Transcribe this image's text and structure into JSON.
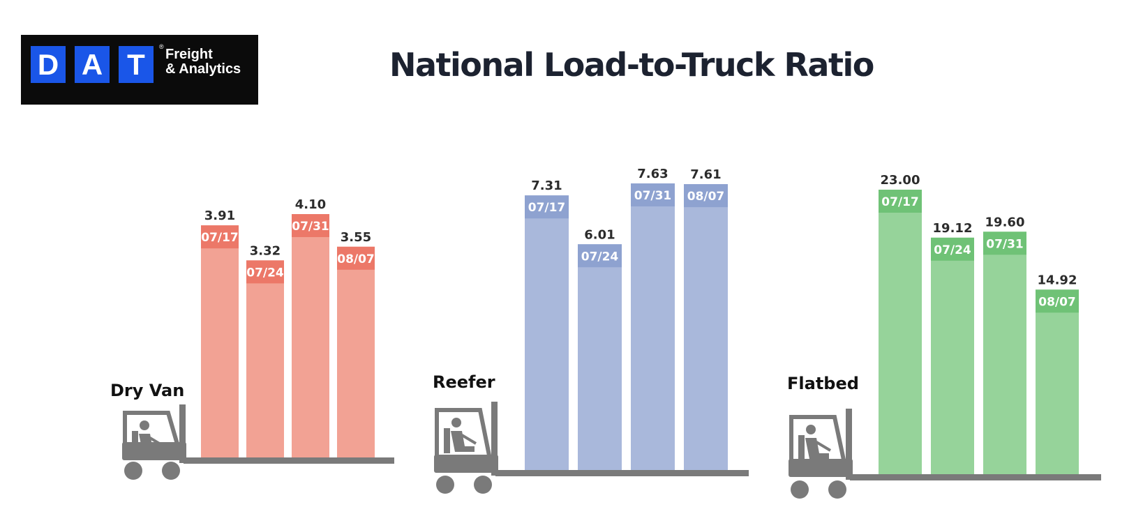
{
  "logo": {
    "letters": [
      "D",
      "A",
      "T"
    ],
    "registered": "®",
    "tagline_line1": "Freight",
    "tagline_line2": "& Analytics",
    "colors": {
      "background": "#0b0b0b",
      "tile": "#1a56e8"
    }
  },
  "title": "National Load-to-Truck Ratio",
  "chart_data": [
    {
      "type": "bar",
      "title": "Dry Van",
      "categories": [
        "07/17",
        "07/24",
        "07/31",
        "08/07"
      ],
      "values": [
        3.91,
        3.32,
        4.1,
        3.55
      ],
      "value_labels": [
        "3.91",
        "3.32",
        "4.10",
        "3.55"
      ],
      "ylim": [
        0,
        4.1
      ],
      "grid": false,
      "colors": {
        "bar": "#f2a294",
        "label_band": "#ec7868"
      }
    },
    {
      "type": "bar",
      "title": "Reefer",
      "categories": [
        "07/17",
        "07/24",
        "07/31",
        "08/07"
      ],
      "values": [
        7.31,
        6.01,
        7.63,
        7.61
      ],
      "value_labels": [
        "7.31",
        "6.01",
        "7.63",
        "7.61"
      ],
      "ylim": [
        0,
        7.63
      ],
      "grid": false,
      "colors": {
        "bar": "#a9b8db",
        "label_band": "#8ea2d0"
      }
    },
    {
      "type": "bar",
      "title": "Flatbed",
      "categories": [
        "07/17",
        "07/24",
        "07/31",
        "08/07"
      ],
      "values": [
        23.0,
        19.12,
        19.6,
        14.92
      ],
      "value_labels": [
        "23.00",
        "19.12",
        "19.60",
        "14.92"
      ],
      "ylim": [
        0,
        23.0
      ],
      "grid": false,
      "colors": {
        "bar": "#96d39a",
        "label_band": "#6fc276"
      }
    }
  ],
  "colors": {
    "forklift": "#7a7a7a",
    "title": "#1c2230",
    "value_text": "#2b2b2b"
  }
}
